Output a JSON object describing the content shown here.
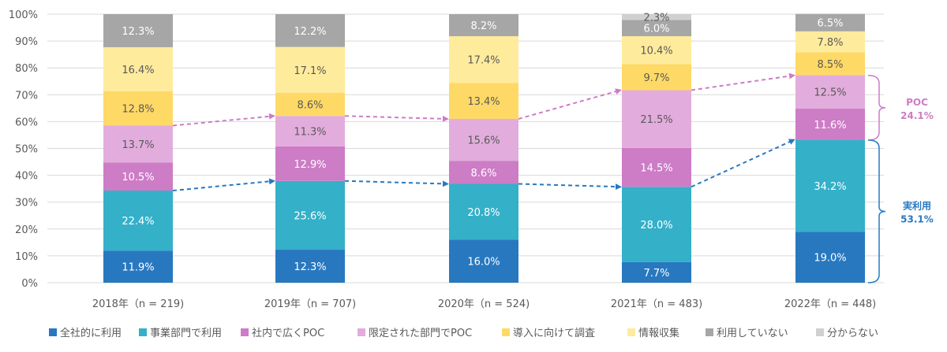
{
  "chart_data": {
    "type": "bar",
    "stacked": true,
    "categories": [
      "2018年（n = 219)",
      "2019年（n = 707)",
      "2020年（n = 524)",
      "2021年（n = 483)",
      "2022年（n = 448)"
    ],
    "series": [
      {
        "name": "全社的に利用",
        "color": "#2878c0",
        "values": [
          11.9,
          12.3,
          16.0,
          7.7,
          19.0
        ]
      },
      {
        "name": "事業部門で利用",
        "color": "#34b0c9",
        "values": [
          22.4,
          25.6,
          20.8,
          28.0,
          34.2
        ]
      },
      {
        "name": "社内で広くPOC",
        "color": "#cd7cc6",
        "values": [
          10.5,
          12.9,
          8.6,
          14.5,
          11.6
        ]
      },
      {
        "name": "限定された部門でPOC",
        "color": "#e2addc",
        "values": [
          13.7,
          11.3,
          15.6,
          21.5,
          12.5
        ]
      },
      {
        "name": "導入に向けて調査",
        "color": "#ffd966",
        "values": [
          12.8,
          8.6,
          13.4,
          9.7,
          8.5
        ]
      },
      {
        "name": "情報収集",
        "color": "#ffeb9c",
        "values": [
          16.4,
          17.1,
          17.4,
          10.4,
          7.8
        ]
      },
      {
        "name": "利用していない",
        "color": "#a6a6a6",
        "values": [
          12.3,
          12.2,
          8.2,
          6.0,
          6.5
        ]
      },
      {
        "name": "分からない",
        "color": "#d0d0d0",
        "values": [
          0,
          0,
          0,
          2.3,
          0
        ]
      }
    ],
    "labels": [
      [
        "11.9%",
        "12.3%",
        "16.0%",
        "7.7%",
        "19.0%"
      ],
      [
        "22.4%",
        "25.6%",
        "20.8%",
        "28.0%",
        "34.2%"
      ],
      [
        "10.5%",
        "12.9%",
        "8.6%",
        "14.5%",
        "11.6%"
      ],
      [
        "13.7%",
        "11.3%",
        "15.6%",
        "21.5%",
        "12.5%"
      ],
      [
        "12.8%",
        "8.6%",
        "13.4%",
        "9.7%",
        "8.5%"
      ],
      [
        "16.4%",
        "17.1%",
        "17.4%",
        "10.4%",
        "7.8%"
      ],
      [
        "12.3%",
        "12.2%",
        "8.2%",
        "6.0%",
        "6.5%"
      ],
      [
        "",
        "",
        "",
        "2.3%",
        ""
      ]
    ],
    "ylim": [
      0,
      100
    ],
    "yticks": [
      "0%",
      "10%",
      "20%",
      "30%",
      "40%",
      "50%",
      "60%",
      "70%",
      "80%",
      "90%",
      "100%"
    ],
    "grid": true,
    "legend_position": "bottom",
    "annotations": [
      {
        "label": "POC",
        "value": "24.1%",
        "color": "#cd7cc6",
        "from": 53.1,
        "to": 77.2
      },
      {
        "label": "実利用",
        "value": "53.1%",
        "color": "#2878c0",
        "from": 0,
        "to": 53.1
      }
    ],
    "trend_lines": [
      {
        "color": "#cd7cc6",
        "values": [
          58.5,
          62.1,
          60.99,
          71.7,
          77.2
        ]
      },
      {
        "color": "#2878c0",
        "values": [
          34.3,
          37.9,
          36.8,
          35.7,
          53.2
        ]
      }
    ]
  }
}
